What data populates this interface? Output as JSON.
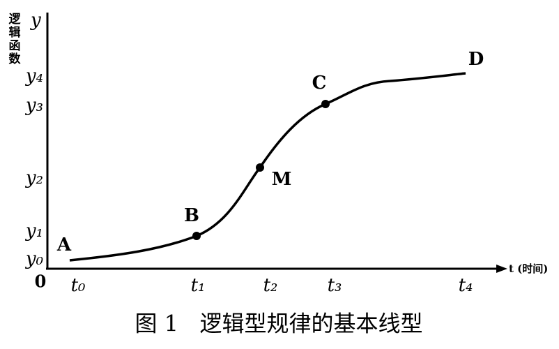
{
  "y_axis": {
    "symbol": "y",
    "title": "逻辑函数",
    "ticks": [
      "y₀",
      "y₁",
      "y₂",
      "y₃",
      "y₄"
    ]
  },
  "x_axis": {
    "origin": "0",
    "title": "t (时间)",
    "ticks": [
      "t₀",
      "t₁",
      "t₂",
      "t₃",
      "t₄"
    ]
  },
  "points": [
    "A",
    "B",
    "M",
    "C",
    "D"
  ],
  "caption": "图 1   逻辑型规律的基本线型"
}
